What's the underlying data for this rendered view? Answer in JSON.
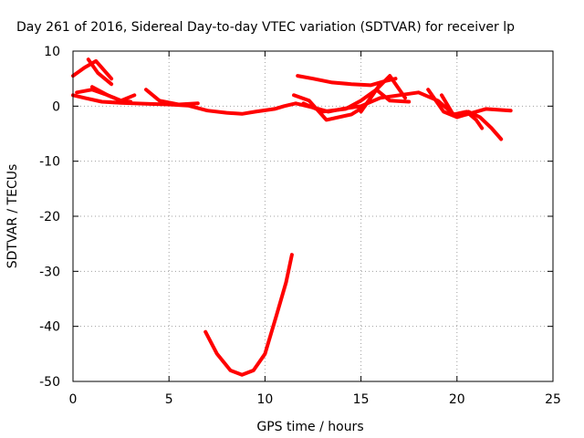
{
  "chart_data": {
    "type": "line",
    "title": "Day 261 of 2016, Sidereal Day-to-day VTEC variation (SDTVAR) for receiver lp",
    "xlabel": "GPS time / hours",
    "ylabel": "SDTVAR / TECUs",
    "xlim": [
      0,
      25
    ],
    "ylim": [
      -50,
      10
    ],
    "xticks": [
      "0",
      "5",
      "10",
      "15",
      "20",
      "25"
    ],
    "yticks": [
      "10",
      "0",
      "-10",
      "-20",
      "-30",
      "-40",
      "-50"
    ],
    "grid": true,
    "series_color": "#ff0000",
    "series": [
      {
        "x": [
          0.0,
          0.6,
          1.5,
          2.5,
          4,
          5,
          6,
          7,
          8,
          8.8,
          9.5,
          10.5,
          11,
          11.6,
          12.2,
          12.8,
          13.3,
          14,
          15,
          16,
          17,
          18,
          19,
          20,
          20.5,
          21.5,
          22.8
        ],
        "y": [
          2,
          1.5,
          0.8,
          0.6,
          0.4,
          0.3,
          0.1,
          -0.8,
          -1.2,
          -1.4,
          -1,
          -0.5,
          0,
          0.5,
          0,
          -0.5,
          -1,
          -0.5,
          0,
          1.5,
          2,
          2.5,
          1,
          -2,
          -1.5,
          -0.5,
          -0.8
        ]
      },
      {
        "x": [
          0.0,
          0.6,
          1.2,
          2.0
        ],
        "y": [
          5.5,
          7,
          8.2,
          5
        ]
      },
      {
        "x": [
          0.8,
          1.3,
          2.0
        ],
        "y": [
          8.5,
          6,
          4
        ]
      },
      {
        "x": [
          0.2,
          1.0,
          1.8,
          2.5,
          3.2
        ],
        "y": [
          2.5,
          3,
          2,
          1,
          2
        ]
      },
      {
        "x": [
          3.8,
          4.5,
          5.5,
          6.5
        ],
        "y": [
          3,
          1,
          0.3,
          0.5
        ]
      },
      {
        "x": [
          1.0,
          1.8,
          2.5,
          3.0
        ],
        "y": [
          3.5,
          2,
          1,
          0.8
        ]
      },
      {
        "x": [
          11.7,
          12.5,
          13.5,
          14.5,
          15.5,
          16.2,
          16.8
        ],
        "y": [
          5.5,
          5,
          4.3,
          4,
          3.8,
          4.5,
          5
        ]
      },
      {
        "x": [
          11.5,
          12.3,
          13.2,
          14.5,
          15.2,
          15.6,
          16.0
        ],
        "y": [
          2,
          1,
          -2.5,
          -1.5,
          0,
          2,
          4
        ]
      },
      {
        "x": [
          12.0,
          13.0,
          14.2,
          15.0,
          15.8,
          16.5,
          17.5
        ],
        "y": [
          0.5,
          -1,
          -0.5,
          1,
          3,
          1,
          0.8
        ]
      },
      {
        "x": [
          15.0,
          15.8,
          16.5,
          17.3
        ],
        "y": [
          -1,
          3,
          5.5,
          1.5
        ]
      },
      {
        "x": [
          18.5,
          19.3,
          20.0,
          20.6,
          21.2,
          21.8,
          22.3
        ],
        "y": [
          3,
          -1,
          -2,
          -1,
          -2,
          -4,
          -6
        ]
      },
      {
        "x": [
          19.2,
          19.8,
          20.5,
          21.0,
          21.3
        ],
        "y": [
          2,
          -1.5,
          -1,
          -2.5,
          -4
        ]
      },
      {
        "x": [
          6.9,
          7.5,
          8.2,
          8.8,
          9.4,
          10.0,
          10.6,
          11.1,
          11.4
        ],
        "y": [
          -41,
          -45,
          -48,
          -48.8,
          -48,
          -45,
          -38,
          -32,
          -27
        ]
      }
    ]
  }
}
